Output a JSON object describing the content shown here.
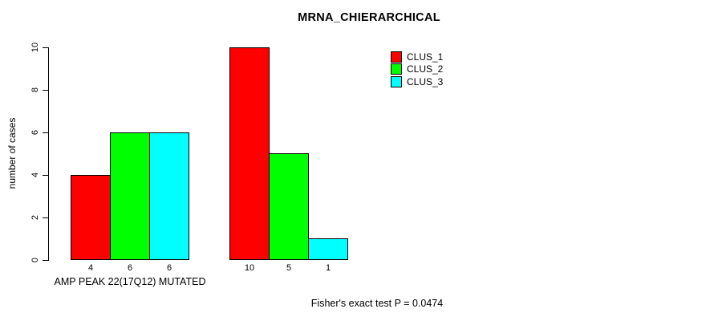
{
  "chart_data": {
    "type": "bar",
    "title": "MRNA_CHIERARCHICAL",
    "ylabel": "number of cases",
    "xlabel": "",
    "ylim": [
      0,
      10
    ],
    "yticks": [
      0,
      2,
      4,
      6,
      8,
      10
    ],
    "grid": false,
    "legend_position": "top-right",
    "legend": [
      {
        "name": "CLUS_1",
        "color": "#FF0000"
      },
      {
        "name": "CLUS_2",
        "color": "#00FF00"
      },
      {
        "name": "CLUS_3",
        "color": "#00FFFF"
      }
    ],
    "categories": [
      "AMP PEAK 22(17Q12) MUTATED",
      ""
    ],
    "series": [
      {
        "name": "CLUS_1",
        "color": "#FF0000",
        "values": [
          4,
          10
        ]
      },
      {
        "name": "CLUS_2",
        "color": "#00FF00",
        "values": [
          6,
          5
        ]
      },
      {
        "name": "CLUS_3",
        "color": "#00FFFF",
        "values": [
          6,
          1
        ]
      }
    ],
    "groups": [
      {
        "label": "AMP PEAK 22(17Q12) MUTATED",
        "values": [
          4,
          6,
          6
        ]
      },
      {
        "label": "",
        "values": [
          10,
          5,
          1
        ]
      }
    ],
    "bar_value_labels_group1": [
      "4",
      "6",
      "6"
    ],
    "bar_value_labels_group2": [
      "10",
      "5",
      "1"
    ],
    "footnote": "Fisher's exact test P = 0.0474"
  }
}
